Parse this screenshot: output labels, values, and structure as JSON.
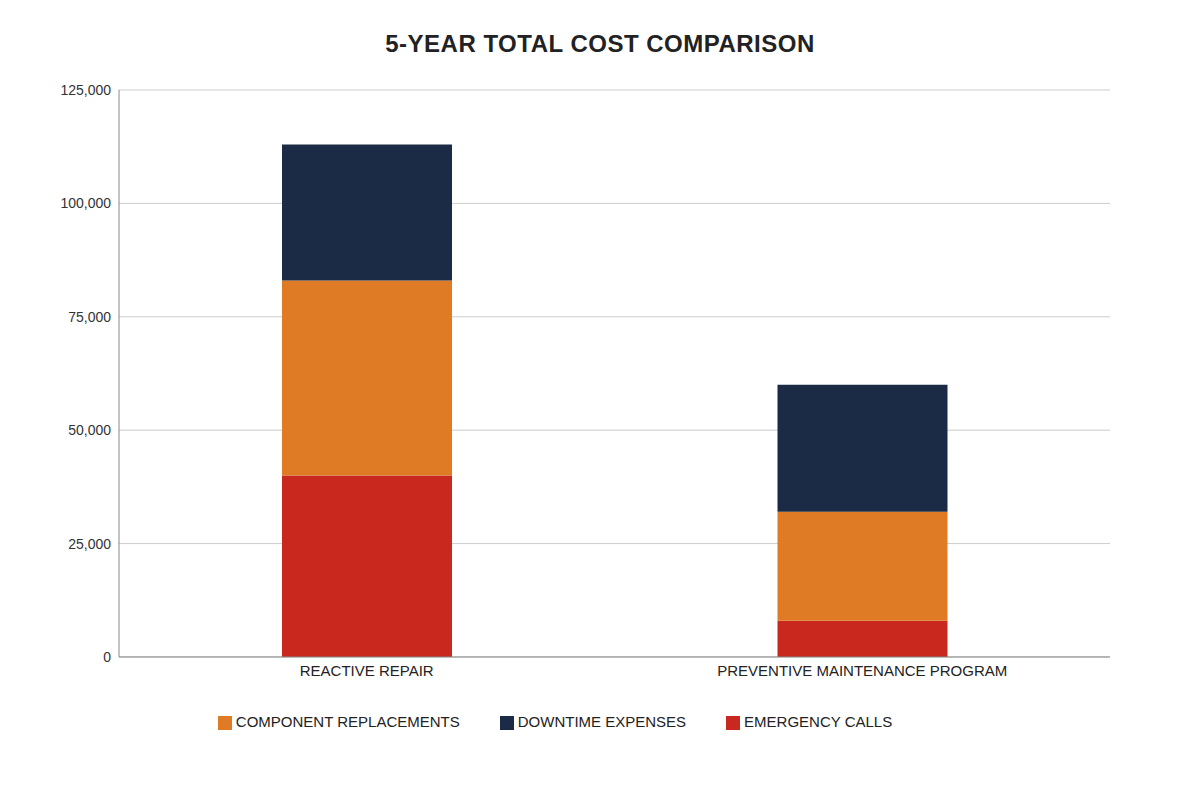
{
  "chart_data": {
    "type": "bar",
    "title": "5-YEAR TOTAL COST COMPARISON",
    "categories": [
      "REACTIVE REPAIR",
      "PREVENTIVE MAINTENANCE PROGRAM"
    ],
    "series": [
      {
        "name": "EMERGENCY CALLS",
        "color": "#c8281e",
        "values": [
          40000,
          8000
        ]
      },
      {
        "name": "COMPONENT REPLACEMENTS",
        "color": "#e07b25",
        "values": [
          43000,
          24000
        ]
      },
      {
        "name": "DOWNTIME EXPENSES",
        "color": "#1b2a45",
        "values": [
          30000,
          28000
        ]
      }
    ],
    "stacked": true,
    "ylim": [
      0,
      125000
    ],
    "yticks": [
      0,
      {
        "value": 25000,
        "label": "25,000"
      },
      {
        "value": 50000,
        "label": "50,000"
      },
      {
        "value": 75000,
        "label": "75,000"
      },
      {
        "value": 100000,
        "label": "100,000"
      },
      {
        "value": 125000,
        "label": "125,000"
      }
    ],
    "grid": true,
    "legend": "bottom"
  }
}
